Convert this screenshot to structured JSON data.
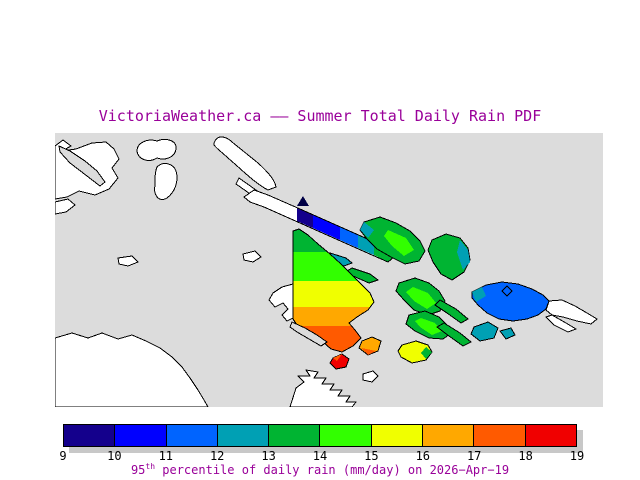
{
  "title": "VictoriaWeather.ca —— Summer Total Daily Rain PDF",
  "colors": {
    "page_background": "#FFFFFF",
    "title_text": "#990099",
    "caption_text": "#990099",
    "tick_text": "#000000",
    "sea": "#DCDCDC",
    "land": "#FFFFFF",
    "coastline": "#000000",
    "colorbar_shadow": "#C8C8C8"
  },
  "colorbar": {
    "tick_labels": [
      "9",
      "10",
      "11",
      "12",
      "13",
      "14",
      "15",
      "16",
      "17",
      "18",
      "19"
    ],
    "segments": [
      {
        "label": "9-10",
        "color": "#14008C"
      },
      {
        "label": "10-11",
        "color": "#0000FF"
      },
      {
        "label": "11-12",
        "color": "#0064FF"
      },
      {
        "label": "12-13",
        "color": "#00A0B4"
      },
      {
        "label": "13-14",
        "color": "#00B432"
      },
      {
        "label": "14-15",
        "color": "#32FF00"
      },
      {
        "label": "15-16",
        "color": "#F0FF00"
      },
      {
        "label": "16-17",
        "color": "#FFA800"
      },
      {
        "label": "17-18",
        "color": "#FF5A00"
      },
      {
        "label": "18-19",
        "color": "#F00000"
      }
    ],
    "caption": {
      "value": "95",
      "superscript": "th",
      "rest": " percentile of daily rain (mm/day) on 2026−Apr−19"
    }
  },
  "chart_data": {
    "type": "heatmap",
    "title": "VictoriaWeather.ca —— Summer Total Daily Rain PDF",
    "colorbar_ticks": [
      9,
      10,
      11,
      12,
      13,
      14,
      15,
      16,
      17,
      18,
      19
    ],
    "colorbar_label": "95th percentile of daily rain (mm/day) on 2026-Apr-19",
    "units": "mm/day",
    "value_range": [
      9,
      19
    ],
    "legend_position": "bottom"
  }
}
